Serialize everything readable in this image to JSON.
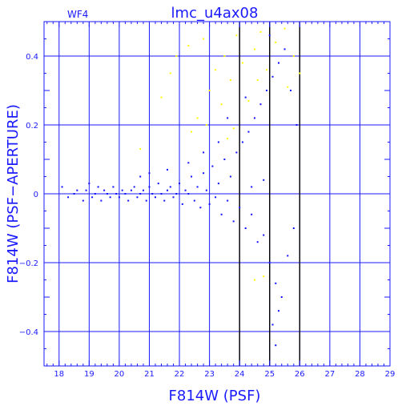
{
  "chart_data": {
    "type": "scatter",
    "title": "lmc_u4ax08",
    "chip": "WF4",
    "xlabel": "F814W (PSF)",
    "ylabel": "F814W (PSF−APERTURE)",
    "xlim": [
      17.5,
      29
    ],
    "ylim": [
      -0.5,
      0.5
    ],
    "xticks": [
      18,
      19,
      20,
      21,
      22,
      23,
      24,
      25,
      26,
      27,
      28,
      29
    ],
    "yticks": [
      -0.4,
      -0.2,
      0,
      0.2,
      0.4
    ],
    "ytick_labels": [
      "−0.4",
      "−0.2",
      "0",
      "0.2",
      "0.4"
    ],
    "grid": true,
    "vertical_lines": [
      24,
      25,
      26
    ],
    "colors": {
      "axes": "#1a1aff",
      "series_main": "#1010ff",
      "series_rejected": "#ffff00"
    },
    "series": [
      {
        "color": "blue",
        "points": [
          [
            18.1,
            0.02
          ],
          [
            18.3,
            -0.01
          ],
          [
            18.5,
            0.0
          ],
          [
            18.6,
            0.01
          ],
          [
            18.8,
            -0.02
          ],
          [
            18.9,
            0.01
          ],
          [
            19.0,
            0.03
          ],
          [
            19.1,
            -0.01
          ],
          [
            19.2,
            0.0
          ],
          [
            19.3,
            0.02
          ],
          [
            19.4,
            -0.02
          ],
          [
            19.5,
            0.01
          ],
          [
            19.6,
            0.0
          ],
          [
            19.7,
            -0.01
          ],
          [
            19.8,
            0.02
          ],
          [
            19.9,
            0.0
          ],
          [
            20.0,
            -0.01
          ],
          [
            20.1,
            0.01
          ],
          [
            20.2,
            0.0
          ],
          [
            20.3,
            -0.02
          ],
          [
            20.4,
            0.01
          ],
          [
            20.5,
            0.02
          ],
          [
            20.6,
            -0.01
          ],
          [
            20.7,
            0.0
          ],
          [
            20.8,
            0.01
          ],
          [
            20.9,
            -0.02
          ],
          [
            21.0,
            0.02
          ],
          [
            21.1,
            0.0
          ],
          [
            21.2,
            -0.01
          ],
          [
            21.3,
            0.03
          ],
          [
            21.4,
            0.0
          ],
          [
            21.5,
            -0.02
          ],
          [
            21.6,
            0.01
          ],
          [
            21.7,
            0.02
          ],
          [
            21.8,
            -0.01
          ],
          [
            21.9,
            0.0
          ],
          [
            22.0,
            0.03
          ],
          [
            22.1,
            -0.03
          ],
          [
            22.2,
            0.01
          ],
          [
            22.3,
            0.0
          ],
          [
            22.4,
            0.05
          ],
          [
            22.5,
            -0.02
          ],
          [
            22.6,
            0.02
          ],
          [
            22.7,
            -0.04
          ],
          [
            22.8,
            0.06
          ],
          [
            22.9,
            0.01
          ],
          [
            23.0,
            -0.03
          ],
          [
            23.1,
            0.08
          ],
          [
            23.2,
            -0.01
          ],
          [
            23.3,
            0.03
          ],
          [
            23.4,
            -0.06
          ],
          [
            23.5,
            0.1
          ],
          [
            23.6,
            -0.02
          ],
          [
            23.7,
            0.05
          ],
          [
            23.8,
            -0.08
          ],
          [
            23.9,
            0.12
          ],
          [
            24.0,
            -0.04
          ],
          [
            24.1,
            0.15
          ],
          [
            24.2,
            -0.1
          ],
          [
            24.3,
            0.18
          ],
          [
            24.4,
            -0.06
          ],
          [
            24.5,
            0.22
          ],
          [
            24.6,
            -0.14
          ],
          [
            24.7,
            0.26
          ],
          [
            24.8,
            -0.12
          ],
          [
            24.9,
            0.3
          ],
          [
            25.0,
            -0.2
          ],
          [
            25.1,
            0.34
          ],
          [
            25.2,
            -0.26
          ],
          [
            25.3,
            0.38
          ],
          [
            25.4,
            -0.3
          ],
          [
            25.5,
            0.42
          ],
          [
            25.6,
            -0.18
          ],
          [
            25.7,
            0.3
          ],
          [
            25.8,
            -0.1
          ],
          [
            25.9,
            0.2
          ],
          [
            25.1,
            -0.38
          ],
          [
            25.2,
            -0.44
          ],
          [
            24.8,
            0.04
          ],
          [
            24.4,
            0.02
          ],
          [
            20.7,
            0.05
          ],
          [
            21.0,
            0.06
          ],
          [
            21.6,
            0.07
          ],
          [
            22.3,
            0.09
          ],
          [
            22.8,
            0.12
          ],
          [
            23.3,
            0.15
          ],
          [
            23.6,
            0.22
          ],
          [
            24.2,
            0.28
          ],
          [
            25.0,
            0.46
          ],
          [
            25.3,
            -0.34
          ]
        ]
      },
      {
        "color": "yellow",
        "points": [
          [
            20.7,
            0.13
          ],
          [
            21.4,
            0.28
          ],
          [
            21.7,
            0.35
          ],
          [
            21.9,
            0.4
          ],
          [
            22.3,
            0.43
          ],
          [
            22.4,
            0.18
          ],
          [
            22.6,
            0.22
          ],
          [
            22.8,
            0.45
          ],
          [
            23.0,
            0.3
          ],
          [
            23.2,
            0.36
          ],
          [
            23.4,
            0.26
          ],
          [
            23.5,
            0.4
          ],
          [
            23.7,
            0.33
          ],
          [
            23.9,
            0.46
          ],
          [
            24.1,
            0.38
          ],
          [
            24.3,
            0.27
          ],
          [
            24.5,
            0.42
          ],
          [
            24.7,
            0.47
          ],
          [
            24.9,
            0.36
          ],
          [
            25.2,
            0.44
          ],
          [
            25.5,
            0.48
          ],
          [
            25.8,
            0.4
          ],
          [
            26.0,
            0.35
          ],
          [
            24.5,
            -0.25
          ],
          [
            24.8,
            -0.24
          ],
          [
            23.6,
            0.16
          ],
          [
            22.9,
            0.2
          ],
          [
            23.8,
            0.19
          ],
          [
            24.6,
            0.33
          ],
          [
            25.6,
            0.31
          ]
        ]
      }
    ]
  }
}
